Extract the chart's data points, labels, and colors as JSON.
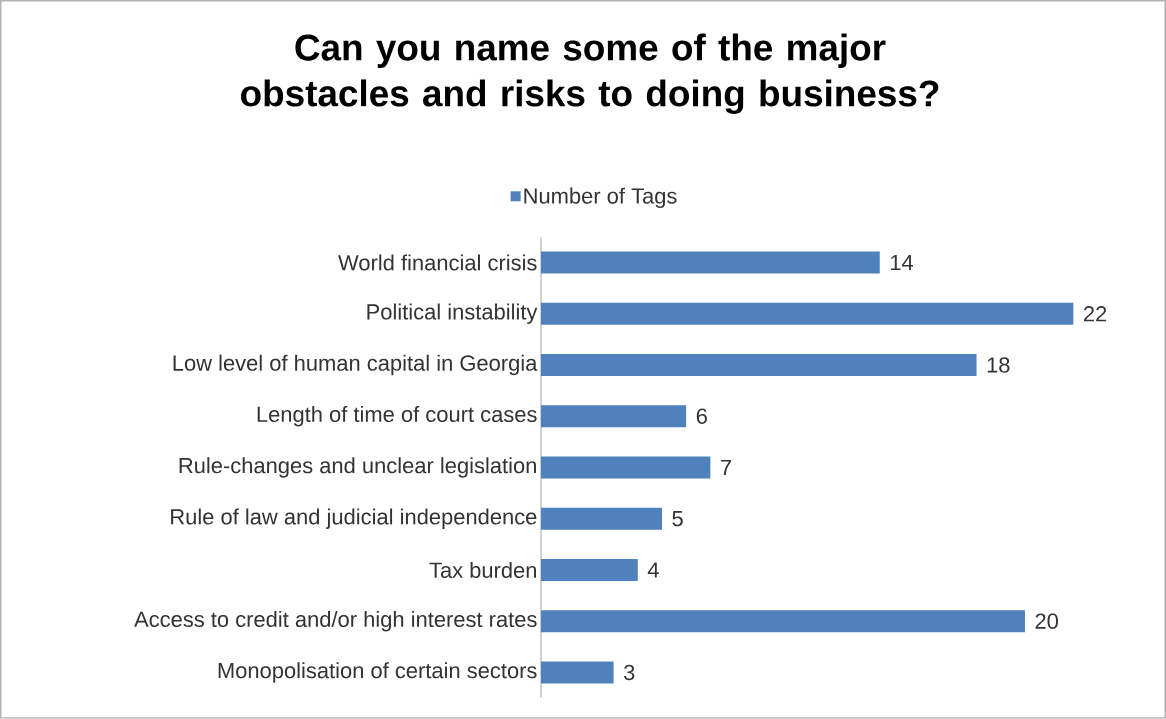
{
  "chart_data": {
    "type": "bar",
    "orientation": "horizontal",
    "title": "Can you name some of the major obstacles and risks to doing business?",
    "categories": [
      "World financial crisis",
      "Political instability",
      "Low level of human capital in Georgia",
      "Length of time of court cases",
      "Rule-changes  and unclear legislation",
      "Rule of law and judicial independence",
      "Tax burden",
      "Access to credit and/or high interest rates",
      "Monopolisation of certain sectors"
    ],
    "series": [
      {
        "name": "Number of Tags",
        "color": "#4f81bd",
        "values": [
          14,
          22,
          18,
          6,
          7,
          5,
          4,
          20,
          3
        ]
      }
    ],
    "data_labels": true,
    "legend": "top"
  }
}
